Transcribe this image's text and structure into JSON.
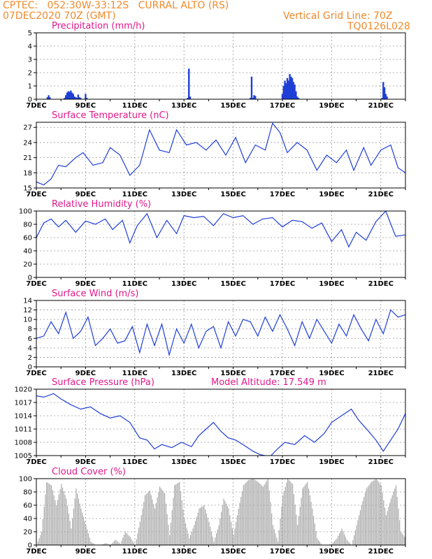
{
  "header": {
    "line1": "CPTEC:   052:30W-33:12S   CURRAL ALTO (RS)",
    "line2": "07DEC2020 70Z (GMT)",
    "grid_line": "Vertical Grid Line: 70Z",
    "code": "TQ0126L028"
  },
  "colors": {
    "series": "#1f3fd6",
    "cloud": "#a9a9a9",
    "title": "#e0198a",
    "header": "#f08a2c",
    "grid": "#9a9a9a"
  },
  "x_axis": {
    "labels": [
      "7DEC",
      "9DEC",
      "11DEC",
      "13DEC",
      "15DEC",
      "17DEC",
      "19DEC",
      "21DEC"
    ]
  },
  "chart_data": [
    {
      "type": "bar",
      "title": "Precipitation (mm/h)",
      "xlim": [
        7,
        22
      ],
      "ylim": [
        0,
        5
      ],
      "yticks": [
        0,
        1,
        2,
        3,
        4,
        5
      ],
      "x": [
        7.45,
        7.5,
        7.55,
        8.15,
        8.2,
        8.25,
        8.3,
        8.35,
        8.4,
        8.45,
        8.5,
        8.55,
        8.6,
        8.65,
        8.7,
        8.75,
        8.8,
        9.0,
        9.05,
        13.15,
        13.2,
        13.25,
        15.7,
        15.75,
        15.8,
        15.85,
        15.9,
        17.0,
        17.05,
        17.1,
        17.15,
        17.2,
        17.25,
        17.3,
        17.35,
        17.4,
        17.45,
        17.5,
        17.55,
        17.6,
        17.65,
        21.05,
        21.1,
        21.15,
        21.2,
        21.25
      ],
      "values": [
        0.15,
        0.3,
        0.15,
        0.1,
        0.3,
        0.5,
        0.6,
        0.55,
        0.65,
        0.5,
        0.4,
        0.2,
        0.15,
        0.1,
        0.35,
        0.15,
        0.1,
        0.4,
        0.1,
        0.1,
        2.3,
        0.2,
        0.1,
        1.7,
        0.1,
        0.3,
        0.25,
        0.4,
        1.0,
        1.4,
        1.2,
        1.6,
        1.4,
        1.9,
        1.7,
        1.6,
        1.3,
        1.1,
        0.6,
        0.2,
        0.1,
        0.1,
        1.3,
        0.9,
        0.4,
        0.2
      ]
    },
    {
      "type": "line",
      "title": "Surface Temperature (nC)",
      "xlim": [
        7,
        22
      ],
      "ylim": [
        15,
        28
      ],
      "yticks": [
        15,
        18,
        21,
        24,
        27
      ],
      "x": [
        7.0,
        7.3,
        7.6,
        7.9,
        8.2,
        8.6,
        8.9,
        9.3,
        9.7,
        10.0,
        10.4,
        10.8,
        11.2,
        11.6,
        12.0,
        12.4,
        12.7,
        13.1,
        13.5,
        13.9,
        14.3,
        14.7,
        15.1,
        15.5,
        15.9,
        16.3,
        16.6,
        16.9,
        17.2,
        17.6,
        18.0,
        18.4,
        18.8,
        19.2,
        19.6,
        19.9,
        20.3,
        20.6,
        21.0,
        21.4,
        21.7,
        22.0
      ],
      "values": [
        16.2,
        15.6,
        16.8,
        19.5,
        19.2,
        21.0,
        22.0,
        19.5,
        20.0,
        23.0,
        21.5,
        17.5,
        19.5,
        26.5,
        22.5,
        22.0,
        26.5,
        23.5,
        24.0,
        22.5,
        24.5,
        21.5,
        25.0,
        20.0,
        23.5,
        22.5,
        27.8,
        26.0,
        22.0,
        24.0,
        22.5,
        18.5,
        21.5,
        20.0,
        22.5,
        18.5,
        23.0,
        19.5,
        22.5,
        23.5,
        19.0,
        18.0
      ]
    },
    {
      "type": "line",
      "title": "Relative Humidity (%)",
      "xlim": [
        7,
        22
      ],
      "ylim": [
        0,
        100
      ],
      "yticks": [
        0,
        20,
        40,
        60,
        80,
        100
      ],
      "x": [
        7.0,
        7.3,
        7.6,
        7.9,
        8.2,
        8.6,
        9.0,
        9.4,
        9.8,
        10.1,
        10.5,
        10.8,
        11.1,
        11.5,
        11.9,
        12.3,
        12.7,
        13.0,
        13.4,
        13.8,
        14.2,
        14.6,
        15.0,
        15.4,
        15.8,
        16.2,
        16.6,
        17.0,
        17.4,
        17.8,
        18.2,
        18.6,
        19.0,
        19.4,
        19.7,
        20.0,
        20.4,
        20.8,
        21.2,
        21.6,
        22.0
      ],
      "values": [
        60,
        82,
        88,
        76,
        86,
        68,
        85,
        80,
        88,
        72,
        86,
        52,
        78,
        96,
        60,
        86,
        66,
        93,
        90,
        92,
        78,
        96,
        90,
        93,
        80,
        88,
        90,
        76,
        86,
        84,
        74,
        82,
        54,
        72,
        46,
        68,
        56,
        84,
        100,
        62,
        64
      ]
    },
    {
      "type": "line",
      "title": "Surface Wind (m/s)",
      "xlim": [
        7,
        22
      ],
      "ylim": [
        0,
        14
      ],
      "yticks": [
        0,
        2,
        4,
        6,
        8,
        10,
        12,
        14
      ],
      "x": [
        7.0,
        7.3,
        7.6,
        7.9,
        8.2,
        8.5,
        8.8,
        9.1,
        9.4,
        9.7,
        10.0,
        10.3,
        10.6,
        10.9,
        11.2,
        11.5,
        11.8,
        12.1,
        12.4,
        12.7,
        13.0,
        13.3,
        13.6,
        13.9,
        14.2,
        14.5,
        14.8,
        15.1,
        15.4,
        15.7,
        16.0,
        16.3,
        16.6,
        16.9,
        17.2,
        17.5,
        17.8,
        18.1,
        18.4,
        18.7,
        19.0,
        19.3,
        19.6,
        19.9,
        20.2,
        20.5,
        20.8,
        21.1,
        21.4,
        21.7,
        22.0
      ],
      "values": [
        6.0,
        6.5,
        9.5,
        7.0,
        11.5,
        6.0,
        7.5,
        10.5,
        4.5,
        6.0,
        8.0,
        5.0,
        5.5,
        8.5,
        3.0,
        9.0,
        4.5,
        9.0,
        2.5,
        8.0,
        5.0,
        9.0,
        4.0,
        7.5,
        8.5,
        4.0,
        9.5,
        6.5,
        10.0,
        9.5,
        6.5,
        10.5,
        7.5,
        11.0,
        8.0,
        4.5,
        9.5,
        6.0,
        10.0,
        7.5,
        5.0,
        9.0,
        6.5,
        11.0,
        8.0,
        5.5,
        10.0,
        7.0,
        12.0,
        10.5,
        11.0
      ]
    },
    {
      "type": "line",
      "title": "Surface Pressure (hPa)",
      "annotation": "Model Altitude: 17.549 m",
      "xlim": [
        7,
        22
      ],
      "ylim": [
        1005,
        1020
      ],
      "yticks": [
        1005,
        1008,
        1011,
        1014,
        1017,
        1020
      ],
      "x": [
        7.0,
        7.3,
        7.7,
        8.0,
        8.4,
        8.8,
        9.2,
        9.6,
        10.0,
        10.4,
        10.8,
        11.2,
        11.5,
        11.8,
        12.1,
        12.5,
        12.9,
        13.3,
        13.6,
        13.9,
        14.2,
        14.5,
        14.8,
        15.1,
        15.4,
        15.8,
        16.1,
        16.5,
        16.8,
        17.1,
        17.5,
        17.9,
        18.3,
        18.7,
        19.0,
        19.4,
        19.8,
        20.1,
        20.5,
        20.8,
        21.1,
        21.4,
        21.7,
        22.0
      ],
      "values": [
        1018.5,
        1018.2,
        1019.0,
        1017.8,
        1016.5,
        1015.5,
        1016.0,
        1014.5,
        1013.5,
        1014.0,
        1012.5,
        1009.0,
        1008.5,
        1006.5,
        1007.5,
        1006.8,
        1008.0,
        1007.0,
        1009.5,
        1011.0,
        1012.5,
        1010.5,
        1009.0,
        1008.5,
        1007.5,
        1006.0,
        1005.2,
        1004.8,
        1006.5,
        1008.0,
        1007.5,
        1009.5,
        1008.0,
        1010.0,
        1012.5,
        1014.0,
        1015.5,
        1013.0,
        1010.5,
        1008.5,
        1006.0,
        1008.5,
        1011.0,
        1014.5
      ]
    },
    {
      "type": "area",
      "title": "Cloud Cover (%)",
      "xlim": [
        7,
        22
      ],
      "ylim": [
        0,
        100
      ],
      "yticks": [
        0,
        20,
        40,
        60,
        80,
        100
      ],
      "x": [
        7.0,
        7.2,
        7.4,
        7.6,
        7.8,
        8.0,
        8.2,
        8.4,
        8.6,
        8.8,
        9.0,
        9.2,
        9.4,
        9.6,
        9.8,
        10.0,
        10.2,
        10.4,
        10.6,
        10.8,
        11.0,
        11.2,
        11.4,
        11.6,
        11.8,
        12.0,
        12.2,
        12.4,
        12.6,
        12.8,
        13.0,
        13.2,
        13.4,
        13.6,
        13.8,
        14.0,
        14.2,
        14.4,
        14.6,
        14.8,
        15.0,
        15.2,
        15.4,
        15.6,
        15.8,
        16.0,
        16.2,
        16.4,
        16.6,
        16.8,
        17.0,
        17.2,
        17.4,
        17.6,
        17.8,
        18.0,
        18.2,
        18.4,
        18.6,
        18.8,
        19.0,
        19.2,
        19.4,
        19.6,
        19.8,
        20.0,
        20.2,
        20.4,
        20.6,
        20.8,
        21.0,
        21.2,
        21.4,
        21.6,
        21.8,
        22.0
      ],
      "values": [
        0,
        20,
        95,
        90,
        60,
        92,
        70,
        25,
        85,
        55,
        30,
        5,
        0,
        0,
        3,
        0,
        8,
        2,
        20,
        12,
        0,
        35,
        75,
        82,
        55,
        88,
        78,
        15,
        90,
        95,
        40,
        10,
        30,
        55,
        60,
        35,
        5,
        30,
        70,
        55,
        15,
        55,
        90,
        98,
        100,
        95,
        88,
        100,
        30,
        5,
        75,
        100,
        92,
        30,
        85,
        95,
        55,
        10,
        0,
        0,
        2,
        10,
        25,
        8,
        0,
        30,
        60,
        85,
        95,
        100,
        90,
        45,
        70,
        90,
        20,
        10
      ]
    }
  ]
}
